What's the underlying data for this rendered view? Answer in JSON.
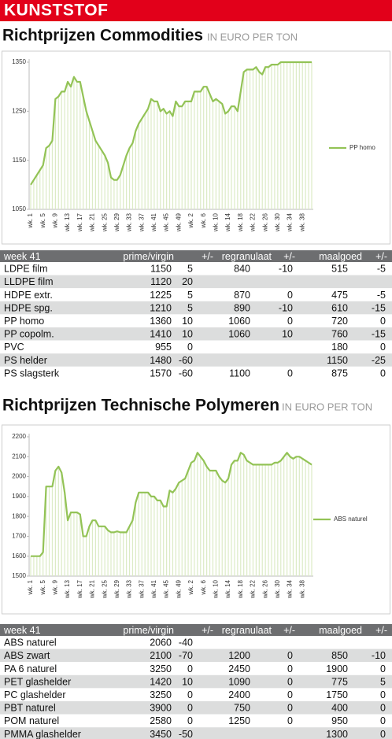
{
  "header": {
    "title": "KUNSTSTOF"
  },
  "chart_data": [
    {
      "type": "line",
      "title": "Richtprijzen Commodities",
      "subtitle": "IN EURO PER TON",
      "categories": [
        "wk. 1",
        null,
        null,
        null,
        "wk. 5",
        null,
        null,
        null,
        "wk. 9",
        null,
        null,
        null,
        "wk. 13",
        null,
        null,
        null,
        "wk. 17",
        null,
        null,
        null,
        "wk. 21",
        null,
        null,
        null,
        "wk. 25",
        null,
        null,
        null,
        "wk. 29",
        null,
        null,
        null,
        "wk. 33",
        null,
        null,
        null,
        "wk. 37",
        null,
        null,
        null,
        "wk. 41",
        null,
        null,
        null,
        "wk. 45",
        null,
        null,
        null,
        "wk. 49",
        null,
        null,
        null,
        "wk. 2",
        null,
        null,
        null,
        "wk. 6",
        null,
        null,
        null,
        "wk. 10",
        null,
        null,
        null,
        "wk. 14",
        null,
        null,
        null,
        "wk. 18",
        null,
        null,
        null,
        "wk. 22",
        null,
        null,
        null,
        "wk. 26",
        null,
        null,
        null,
        "wk. 30",
        null,
        null,
        null,
        "wk. 34",
        null,
        null,
        null,
        "wk. 38",
        null,
        null,
        null
      ],
      "series": [
        {
          "name": "PP homo",
          "color": "#93c356",
          "values": [
            1100,
            1110,
            1120,
            1130,
            1140,
            1175,
            1180,
            1190,
            1275,
            1280,
            1290,
            1290,
            1310,
            1300,
            1320,
            1310,
            1310,
            1280,
            1250,
            1230,
            1210,
            1190,
            1180,
            1170,
            1160,
            1145,
            1115,
            1110,
            1110,
            1120,
            1140,
            1160,
            1175,
            1185,
            1210,
            1225,
            1235,
            1245,
            1255,
            1275,
            1270,
            1270,
            1250,
            1255,
            1245,
            1250,
            1240,
            1270,
            1260,
            1260,
            1270,
            1270,
            1270,
            1290,
            1290,
            1290,
            1300,
            1300,
            1285,
            1270,
            1275,
            1270,
            1265,
            1245,
            1250,
            1260,
            1260,
            1250,
            1290,
            1330,
            1335,
            1335,
            1335,
            1340,
            1330,
            1325,
            1340,
            1340,
            1345,
            1345,
            1345,
            1350,
            1350,
            1350,
            1350,
            1350,
            1350,
            1350,
            1350,
            1350,
            1350,
            1350
          ]
        }
      ],
      "fill_color": "#dcebc6",
      "ylim": [
        1050,
        1350
      ],
      "yticks": [
        1050,
        1150,
        1250,
        1350
      ],
      "legend": "right",
      "grid": false
    },
    {
      "type": "line",
      "title": "Richtprijzen Technische Polymeren",
      "subtitle": "IN EURO PER TON",
      "categories": [
        "wk. 1",
        null,
        null,
        null,
        "wk. 5",
        null,
        null,
        null,
        "wk. 9",
        null,
        null,
        null,
        "wk. 13",
        null,
        null,
        null,
        "wk. 17",
        null,
        null,
        null,
        "wk. 21",
        null,
        null,
        null,
        "wk. 25",
        null,
        null,
        null,
        "wk. 29",
        null,
        null,
        null,
        "wk. 33",
        null,
        null,
        null,
        "wk. 37",
        null,
        null,
        null,
        "wk. 41",
        null,
        null,
        null,
        "wk. 45",
        null,
        null,
        null,
        "wk. 49",
        null,
        null,
        null,
        "wk. 2",
        null,
        null,
        null,
        "wk. 6",
        null,
        null,
        null,
        "wk. 10",
        null,
        null,
        null,
        "wk. 14",
        null,
        null,
        null,
        "wk. 18",
        null,
        null,
        null,
        "wk. 22",
        null,
        null,
        null,
        "wk. 26",
        null,
        null,
        null,
        "wk. 30",
        null,
        null,
        null,
        "wk. 34",
        null,
        null,
        null,
        "wk. 38",
        null,
        null,
        null
      ],
      "series": [
        {
          "name": "ABS naturel",
          "color": "#93c356",
          "values": [
            1600,
            1600,
            1600,
            1600,
            1620,
            1950,
            1950,
            1950,
            2030,
            2050,
            2020,
            1920,
            1780,
            1820,
            1820,
            1820,
            1810,
            1700,
            1700,
            1750,
            1780,
            1780,
            1750,
            1750,
            1750,
            1730,
            1720,
            1720,
            1725,
            1720,
            1720,
            1720,
            1750,
            1780,
            1870,
            1920,
            1920,
            1920,
            1920,
            1900,
            1900,
            1880,
            1880,
            1850,
            1850,
            1930,
            1920,
            1940,
            1970,
            1980,
            1990,
            2030,
            2070,
            2080,
            2120,
            2100,
            2080,
            2050,
            2030,
            2030,
            2030,
            2000,
            1980,
            1970,
            1990,
            2060,
            2080,
            2080,
            2120,
            2110,
            2080,
            2070,
            2060,
            2060,
            2060,
            2060,
            2060,
            2060,
            2060,
            2070,
            2070,
            2080,
            2100,
            2120,
            2100,
            2090,
            2100,
            2100,
            2090,
            2080,
            2070,
            2060
          ]
        }
      ],
      "fill_color": "#dcebc6",
      "ylim": [
        1500,
        2200
      ],
      "yticks": [
        1500,
        1600,
        1700,
        1800,
        1900,
        2000,
        2100,
        2200
      ],
      "legend": "right",
      "grid": false
    }
  ],
  "tables": [
    {
      "columns": [
        "week 41",
        "prime/virgin",
        "+/-",
        "regranulaat",
        "+/-",
        "maalgoed",
        "+/-"
      ],
      "rows": [
        [
          "LDPE film",
          1150,
          5,
          840,
          -10,
          515,
          -5
        ],
        [
          "LLDPE film",
          1120,
          20,
          null,
          null,
          null,
          null
        ],
        [
          "HDPE extr.",
          1225,
          5,
          870,
          0,
          475,
          -5
        ],
        [
          "HDPE spg.",
          1210,
          5,
          890,
          -10,
          610,
          -15
        ],
        [
          "PP homo",
          1360,
          10,
          1060,
          0,
          720,
          0
        ],
        [
          "PP copolm.",
          1410,
          10,
          1060,
          10,
          760,
          -15
        ],
        [
          "PVC",
          955,
          0,
          null,
          null,
          180,
          0
        ],
        [
          "PS helder",
          1480,
          -60,
          null,
          null,
          1150,
          -25
        ],
        [
          "PS slagsterk",
          1570,
          -60,
          1100,
          0,
          875,
          0
        ]
      ]
    },
    {
      "columns": [
        "week 41",
        "prime/virgin",
        "+/-",
        "regranulaat",
        "+/-",
        "maalgoed",
        "+/-"
      ],
      "rows": [
        [
          "ABS naturel",
          2060,
          -40,
          null,
          null,
          null,
          null
        ],
        [
          "ABS zwart",
          2100,
          -70,
          1200,
          0,
          850,
          -10
        ],
        [
          "PA 6 naturel",
          3250,
          0,
          2450,
          0,
          1900,
          0
        ],
        [
          "PET glashelder",
          1420,
          10,
          1090,
          0,
          775,
          5
        ],
        [
          "PC glashelder",
          3250,
          0,
          2400,
          0,
          1750,
          0
        ],
        [
          "PBT naturel",
          3900,
          0,
          750,
          0,
          400,
          0
        ],
        [
          "POM naturel",
          2580,
          0,
          1250,
          0,
          950,
          0
        ],
        [
          "PMMA glashelder",
          3450,
          -50,
          null,
          null,
          1300,
          0
        ]
      ]
    }
  ]
}
